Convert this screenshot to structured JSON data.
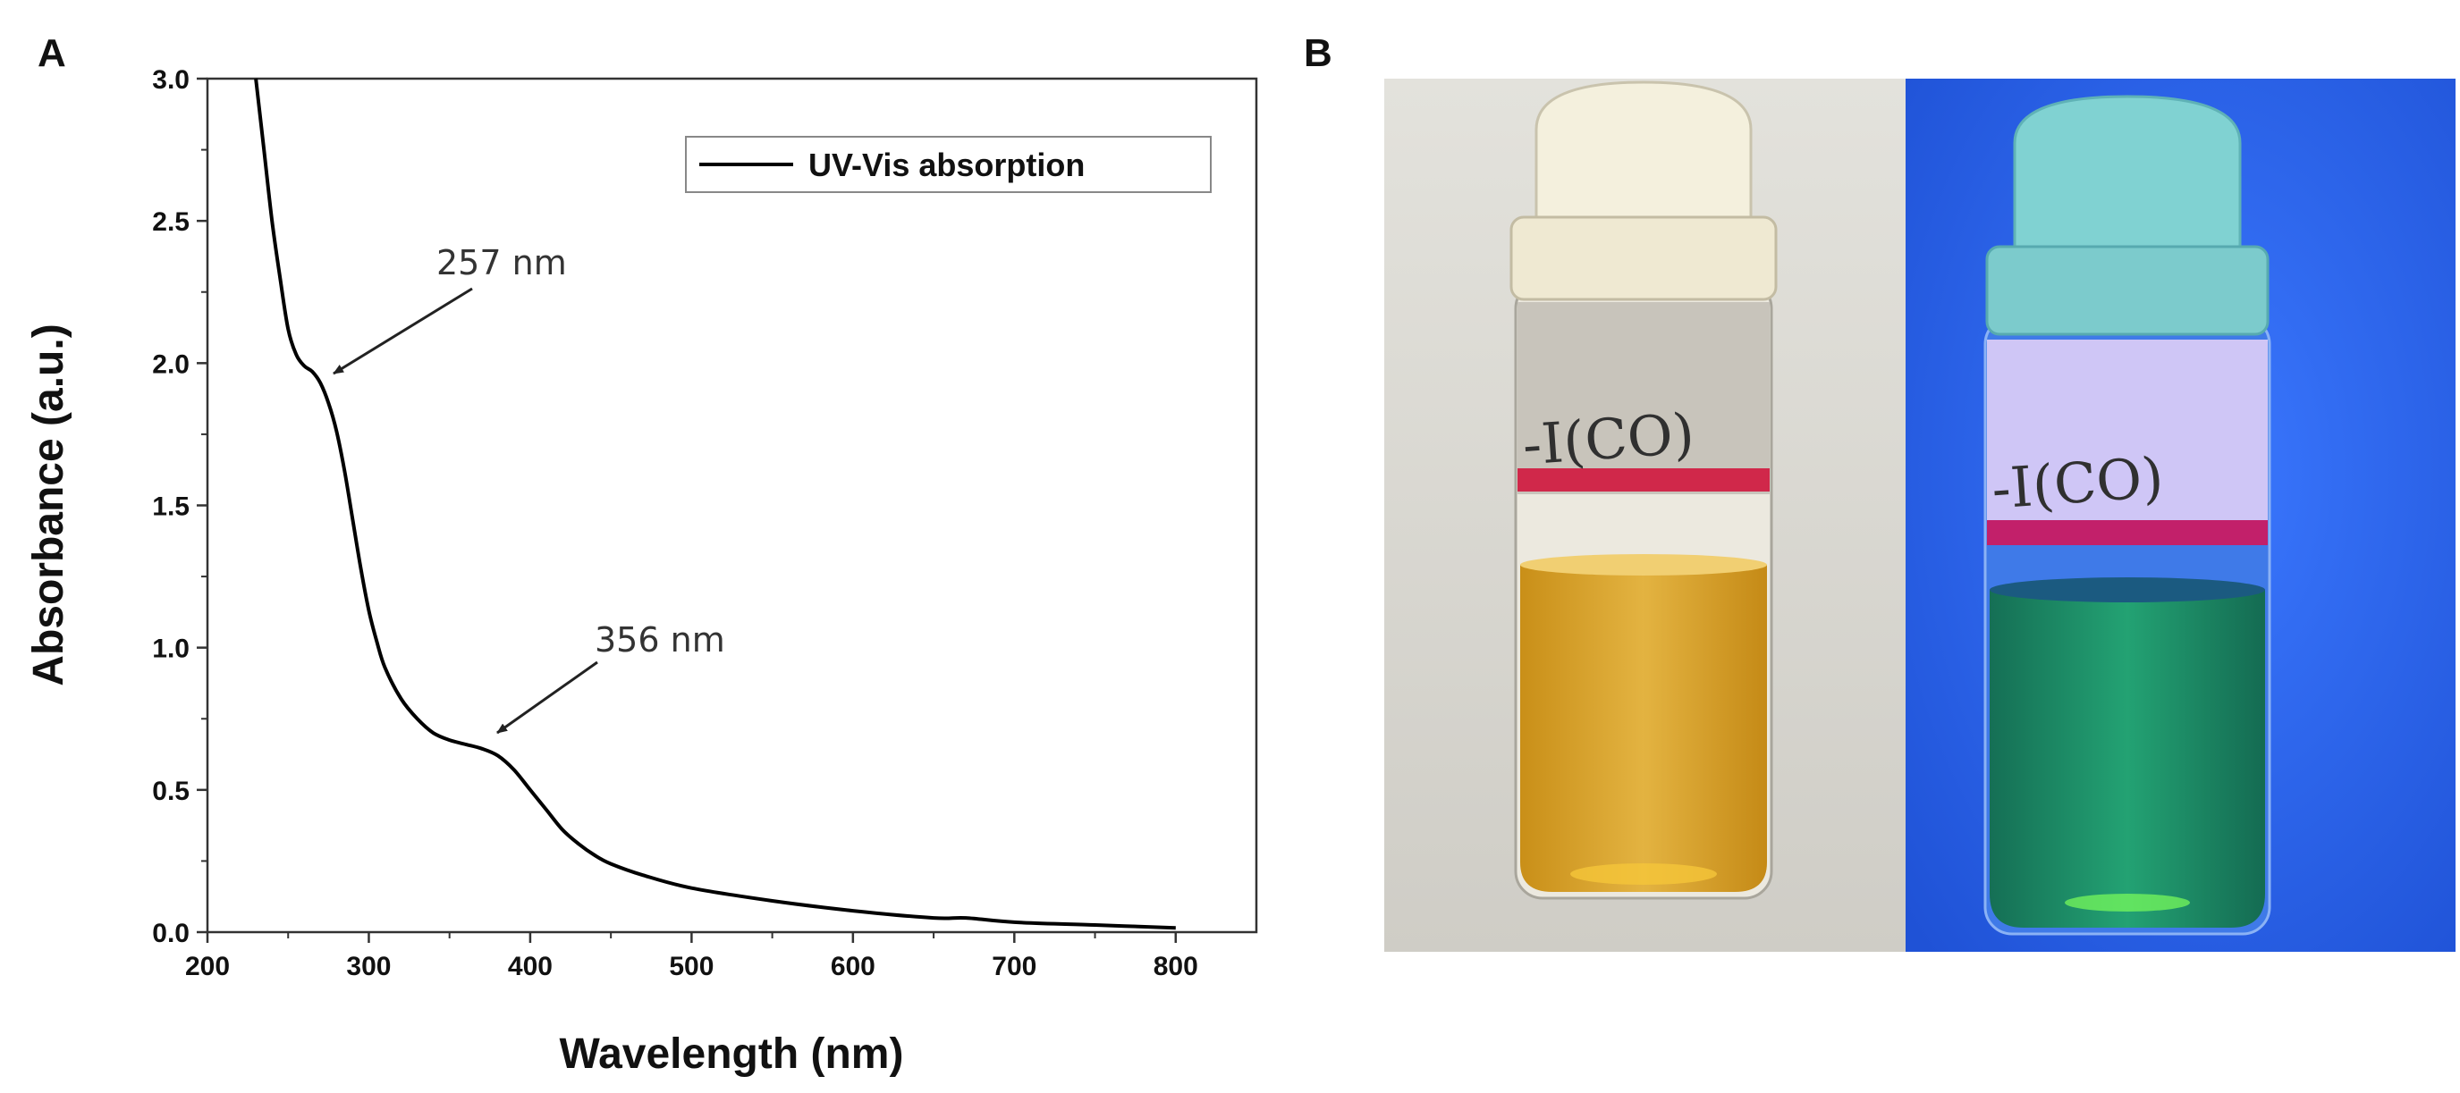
{
  "panels": {
    "a": "A",
    "b": "B"
  },
  "chart_data": {
    "type": "line",
    "xlabel": "Wavelength (nm)",
    "ylabel": "Absorbance (a.u.)",
    "xlim": [
      200,
      850
    ],
    "ylim": [
      0,
      3.0
    ],
    "xticks": [
      200,
      300,
      400,
      500,
      600,
      700,
      800
    ],
    "yticks": [
      0.0,
      0.5,
      1.0,
      1.5,
      2.0,
      2.5,
      3.0
    ],
    "ytick_labels": [
      "0.0",
      "0.5",
      "1.0",
      "1.5",
      "2.0",
      "2.5",
      "3.0"
    ],
    "legend": "top-right",
    "grid": false,
    "series": [
      {
        "name": "UV-Vis absorption",
        "color": "#000000",
        "x": [
          230,
          235,
          240,
          245,
          250,
          255,
          260,
          265,
          270,
          275,
          280,
          285,
          290,
          295,
          300,
          305,
          310,
          320,
          330,
          340,
          350,
          360,
          370,
          380,
          390,
          400,
          410,
          420,
          430,
          440,
          450,
          470,
          500,
          550,
          600,
          650,
          670,
          700,
          750,
          800
        ],
        "y": [
          3.0,
          2.75,
          2.5,
          2.3,
          2.12,
          2.03,
          1.99,
          1.97,
          1.93,
          1.86,
          1.76,
          1.62,
          1.45,
          1.28,
          1.13,
          1.02,
          0.93,
          0.82,
          0.75,
          0.7,
          0.675,
          0.66,
          0.645,
          0.62,
          0.57,
          0.5,
          0.43,
          0.36,
          0.31,
          0.27,
          0.24,
          0.2,
          0.155,
          0.11,
          0.075,
          0.05,
          0.05,
          0.035,
          0.025,
          0.015
        ]
      }
    ],
    "annotations": [
      {
        "text": "257 nm",
        "x": 270,
        "y": 1.97
      },
      {
        "text": "356 nm",
        "x": 375,
        "y": 0.65
      }
    ]
  },
  "photo": {
    "vial_label_text": "-I(CO)",
    "colors": {
      "left_background": "#d9d8d3",
      "right_background": "#2a63f0",
      "left_liquid": "#d9a520",
      "right_liquid": "#1f9a6a",
      "left_cap": "#f4f0dd",
      "right_cap": "#7fd0d0",
      "red_band": "#d0284a"
    }
  }
}
